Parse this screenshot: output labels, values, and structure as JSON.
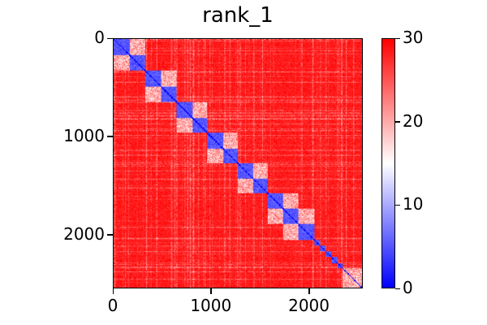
{
  "chart_data": {
    "type": "heatmap",
    "title": "rank_1",
    "n": 2550,
    "xlim": [
      0,
      2550
    ],
    "ylim": [
      2550,
      0
    ],
    "xticks": [
      {
        "v": 0,
        "label": "0"
      },
      {
        "v": 1000,
        "label": "1000"
      },
      {
        "v": 2000,
        "label": "2000"
      }
    ],
    "yticks": [
      {
        "v": 0,
        "label": "0"
      },
      {
        "v": 1000,
        "label": "1000"
      },
      {
        "v": 2000,
        "label": "2000"
      }
    ],
    "colorbar": {
      "vmin": 0,
      "vmax": 30,
      "colormap": "bwr",
      "ticks": [
        {
          "v": 0,
          "label": "0"
        },
        {
          "v": 10,
          "label": "10"
        },
        {
          "v": 20,
          "label": "20"
        },
        {
          "v": 30,
          "label": "30"
        }
      ]
    },
    "background_value": 30,
    "blocks": [
      [
        0,
        160
      ],
      [
        160,
        320
      ],
      [
        320,
        486
      ],
      [
        486,
        645
      ],
      [
        645,
        806
      ],
      [
        806,
        958
      ],
      [
        958,
        1119
      ],
      [
        1119,
        1272
      ],
      [
        1272,
        1431
      ],
      [
        1431,
        1578
      ],
      [
        1578,
        1736
      ],
      [
        1736,
        1894
      ],
      [
        1894,
        2055
      ],
      [
        2055,
        2115
      ],
      [
        2115,
        2175
      ],
      [
        2175,
        2235
      ],
      [
        2235,
        2295
      ],
      [
        2295,
        2350
      ]
    ],
    "block_value": 3,
    "groups": [
      [
        0,
        320
      ],
      [
        320,
        645
      ],
      [
        645,
        958
      ],
      [
        958,
        1272
      ],
      [
        1272,
        1578
      ],
      [
        1578,
        1894
      ],
      [
        1736,
        2055
      ],
      [
        2350,
        2550
      ]
    ],
    "group_value": 20,
    "diagonal_value": 0
  }
}
